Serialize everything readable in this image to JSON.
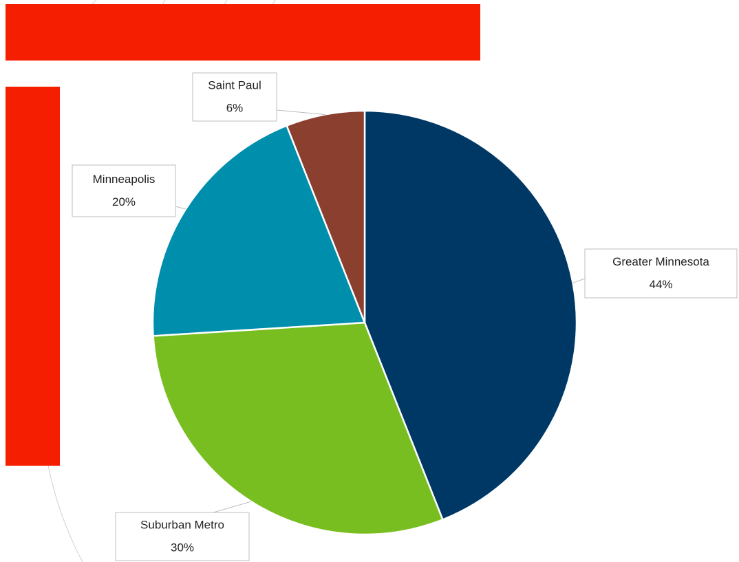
{
  "chart_data": {
    "type": "pie",
    "categories": [
      "Greater Minnesota",
      "Suburban Metro",
      "Minneapolis",
      "Saint Paul"
    ],
    "values": [
      44,
      30,
      20,
      6
    ],
    "value_labels": [
      "44%",
      "30%",
      "20%",
      "6%"
    ],
    "colors": [
      "#003865",
      "#78be21",
      "#008ead",
      "#8b3f2f"
    ]
  }
}
